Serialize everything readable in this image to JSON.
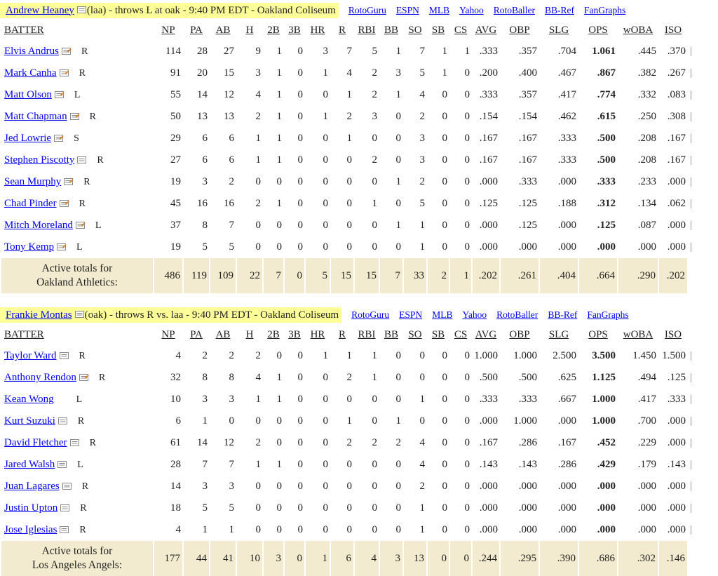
{
  "games": [
    {
      "pitcher": {
        "name": "Andrew Heaney",
        "info": " (laa) - throws L at oak - 9:40 PM EDT - Oakland Coliseum"
      },
      "links": [
        "RotoGuru",
        "ESPN",
        "MLB",
        "Yahoo",
        "RotoBaller",
        "BB-Ref",
        "FanGraphs"
      ],
      "headers": [
        "BATTER",
        "NP",
        "PA",
        "AB",
        "H",
        "2B",
        "3B",
        "HR",
        "R",
        "RBI",
        "BB",
        "SO",
        "SB",
        "CS",
        "AVG",
        "OBP",
        "SLG",
        "OPS",
        "wOBA",
        "ISO"
      ],
      "rows": [
        {
          "name": "Elvis Andrus",
          "note": "orange",
          "hand": "R",
          "stats": [
            "114",
            "28",
            "27",
            "9",
            "1",
            "0",
            "3",
            "7",
            "5",
            "1",
            "7",
            "1",
            "1",
            ".333",
            ".357",
            ".704",
            "1.061",
            ".445",
            ".370"
          ]
        },
        {
          "name": "Mark Canha",
          "note": "orange",
          "hand": "R",
          "stats": [
            "91",
            "20",
            "15",
            "3",
            "1",
            "0",
            "1",
            "4",
            "2",
            "3",
            "5",
            "1",
            "0",
            ".200",
            ".400",
            ".467",
            ".867",
            ".382",
            ".267"
          ]
        },
        {
          "name": "Matt Olson",
          "note": "orange",
          "hand": "L",
          "stats": [
            "55",
            "14",
            "12",
            "4",
            "1",
            "0",
            "0",
            "1",
            "2",
            "1",
            "4",
            "0",
            "0",
            ".333",
            ".357",
            ".417",
            ".774",
            ".332",
            ".083"
          ]
        },
        {
          "name": "Matt Chapman",
          "note": "orange",
          "hand": "R",
          "stats": [
            "50",
            "13",
            "13",
            "2",
            "1",
            "0",
            "1",
            "2",
            "3",
            "0",
            "2",
            "0",
            "0",
            ".154",
            ".154",
            ".462",
            ".615",
            ".250",
            ".308"
          ]
        },
        {
          "name": "Jed Lowrie",
          "note": "orange",
          "hand": "S",
          "stats": [
            "29",
            "6",
            "6",
            "1",
            "1",
            "0",
            "0",
            "1",
            "0",
            "0",
            "3",
            "0",
            "0",
            ".167",
            ".167",
            ".333",
            ".500",
            ".208",
            ".167"
          ]
        },
        {
          "name": "Stephen Piscotty",
          "note": "gray",
          "hand": "R",
          "stats": [
            "27",
            "6",
            "6",
            "1",
            "1",
            "0",
            "0",
            "0",
            "2",
            "0",
            "3",
            "0",
            "0",
            ".167",
            ".167",
            ".333",
            ".500",
            ".208",
            ".167"
          ]
        },
        {
          "name": "Sean Murphy",
          "note": "orange",
          "hand": "R",
          "stats": [
            "19",
            "3",
            "2",
            "0",
            "0",
            "0",
            "0",
            "0",
            "0",
            "1",
            "2",
            "0",
            "0",
            ".000",
            ".333",
            ".000",
            ".333",
            ".233",
            ".000"
          ]
        },
        {
          "name": "Chad Pinder",
          "note": "orange",
          "hand": "R",
          "stats": [
            "45",
            "16",
            "16",
            "2",
            "1",
            "0",
            "0",
            "0",
            "1",
            "0",
            "5",
            "0",
            "0",
            ".125",
            ".125",
            ".188",
            ".312",
            ".134",
            ".062"
          ]
        },
        {
          "name": "Mitch Moreland",
          "note": "orange",
          "hand": "L",
          "stats": [
            "37",
            "8",
            "7",
            "0",
            "0",
            "0",
            "0",
            "0",
            "0",
            "1",
            "1",
            "0",
            "0",
            ".000",
            ".125",
            ".000",
            ".125",
            ".087",
            ".000"
          ]
        },
        {
          "name": "Tony Kemp",
          "note": "orange",
          "hand": "L",
          "stats": [
            "19",
            "5",
            "5",
            "0",
            "0",
            "0",
            "0",
            "0",
            "0",
            "0",
            "1",
            "0",
            "0",
            ".000",
            ".000",
            ".000",
            ".000",
            ".000",
            ".000"
          ]
        }
      ],
      "totals": {
        "label1": "Active totals for",
        "label2": "Oakland Athletics:",
        "stats": [
          "486",
          "119",
          "109",
          "22",
          "7",
          "0",
          "5",
          "15",
          "15",
          "7",
          "33",
          "2",
          "1",
          ".202",
          ".261",
          ".404",
          ".664",
          ".290",
          ".202"
        ]
      }
    },
    {
      "pitcher": {
        "name": "Frankie Montas",
        "info": " (oak) - throws R vs. laa - 9:40 PM EDT - Oakland Coliseum"
      },
      "links": [
        "RotoGuru",
        "ESPN",
        "MLB",
        "Yahoo",
        "RotoBaller",
        "BB-Ref",
        "FanGraphs"
      ],
      "headers": [
        "BATTER",
        "NP",
        "PA",
        "AB",
        "H",
        "2B",
        "3B",
        "HR",
        "R",
        "RBI",
        "BB",
        "SO",
        "SB",
        "CS",
        "AVG",
        "OBP",
        "SLG",
        "OPS",
        "wOBA",
        "ISO"
      ],
      "rows": [
        {
          "name": "Taylor Ward",
          "note": "gray",
          "hand": "R",
          "stats": [
            "4",
            "2",
            "2",
            "2",
            "0",
            "0",
            "1",
            "1",
            "1",
            "0",
            "0",
            "0",
            "0",
            "1.000",
            "1.000",
            "2.500",
            "3.500",
            "1.450",
            "1.500"
          ]
        },
        {
          "name": "Anthony Rendon",
          "note": "orange",
          "hand": "R",
          "stats": [
            "32",
            "8",
            "8",
            "4",
            "1",
            "0",
            "0",
            "2",
            "1",
            "0",
            "0",
            "0",
            "0",
            ".500",
            ".500",
            ".625",
            "1.125",
            ".494",
            ".125"
          ]
        },
        {
          "name": "Kean Wong",
          "note": "none",
          "hand": "L",
          "stats": [
            "10",
            "3",
            "3",
            "1",
            "1",
            "0",
            "0",
            "0",
            "0",
            "0",
            "1",
            "0",
            "0",
            ".333",
            ".333",
            ".667",
            "1.000",
            ".417",
            ".333"
          ]
        },
        {
          "name": "Kurt Suzuki",
          "note": "gray",
          "hand": "R",
          "stats": [
            "6",
            "1",
            "0",
            "0",
            "0",
            "0",
            "0",
            "1",
            "0",
            "1",
            "0",
            "0",
            "0",
            ".000",
            "1.000",
            ".000",
            "1.000",
            ".700",
            ".000"
          ]
        },
        {
          "name": "David Fletcher",
          "note": "gray",
          "hand": "R",
          "stats": [
            "61",
            "14",
            "12",
            "2",
            "0",
            "0",
            "0",
            "2",
            "2",
            "2",
            "4",
            "0",
            "0",
            ".167",
            ".286",
            ".167",
            ".452",
            ".229",
            ".000"
          ]
        },
        {
          "name": "Jared Walsh",
          "note": "gray",
          "hand": "L",
          "stats": [
            "28",
            "7",
            "7",
            "1",
            "1",
            "0",
            "0",
            "0",
            "0",
            "0",
            "4",
            "0",
            "0",
            ".143",
            ".143",
            ".286",
            ".429",
            ".179",
            ".143"
          ]
        },
        {
          "name": "Juan Lagares",
          "note": "gray",
          "hand": "R",
          "stats": [
            "14",
            "3",
            "3",
            "0",
            "0",
            "0",
            "0",
            "0",
            "0",
            "0",
            "2",
            "0",
            "0",
            ".000",
            ".000",
            ".000",
            ".000",
            ".000",
            ".000"
          ]
        },
        {
          "name": "Justin Upton",
          "note": "gray",
          "hand": "R",
          "stats": [
            "18",
            "5",
            "5",
            "0",
            "0",
            "0",
            "0",
            "0",
            "0",
            "0",
            "1",
            "0",
            "0",
            ".000",
            ".000",
            ".000",
            ".000",
            ".000",
            ".000"
          ]
        },
        {
          "name": "Jose Iglesias",
          "note": "gray",
          "hand": "R",
          "stats": [
            "4",
            "1",
            "1",
            "0",
            "0",
            "0",
            "0",
            "0",
            "0",
            "0",
            "1",
            "0",
            "0",
            ".000",
            ".000",
            ".000",
            ".000",
            ".000",
            ".000"
          ]
        }
      ],
      "totals": {
        "label1": "Active totals for",
        "label2": "Los Angeles Angels:",
        "stats": [
          "177",
          "44",
          "41",
          "10",
          "3",
          "0",
          "1",
          "6",
          "4",
          "3",
          "13",
          "0",
          "0",
          ".244",
          ".295",
          ".390",
          ".686",
          ".302",
          ".146"
        ]
      }
    }
  ],
  "colors": {
    "link": "#0000ee",
    "pitcher_bg": "#ffff99",
    "totals_bg": "#f2ebcf",
    "note_orange": "#e07b1a",
    "note_gray": "#9a9a9a"
  },
  "icons": {
    "note_icon": "note-icon"
  }
}
